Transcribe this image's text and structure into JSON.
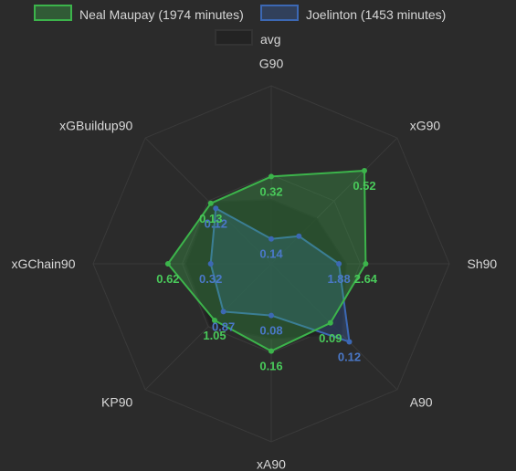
{
  "chart_data": {
    "type": "radar",
    "axes": [
      "G90",
      "xG90",
      "Sh90",
      "A90",
      "xA90",
      "KP90",
      "xGChain90",
      "xGBuildup90"
    ],
    "legend": [
      "Neal Maupay (1974 minutes)",
      "Joelinton (1453 minutes)",
      "avg"
    ],
    "series": [
      {
        "name": "Neal Maupay (1974 minutes)",
        "color": "#3cb44b",
        "values": [
          0.32,
          0.52,
          2.64,
          0.09,
          0.16,
          1.05,
          0.62,
          0.13
        ],
        "labels": [
          "0.32",
          "0.52",
          "2.64",
          "0.09",
          "0.16",
          "1.05",
          "0.62",
          "0.13"
        ],
        "radius_fraction": [
          0.49,
          0.74,
          0.53,
          0.47,
          0.49,
          0.45,
          0.58,
          0.48
        ]
      },
      {
        "name": "Joelinton (1453 minutes)",
        "color": "#3c68b4",
        "values": [
          0.14,
          0.27,
          1.88,
          0.12,
          0.08,
          0.87,
          0.32,
          0.12
        ],
        "labels": [
          "0.14",
          "",
          "1.88",
          "0.12",
          "0.08",
          "0.87",
          "0.32",
          "0.12"
        ],
        "radius_fraction": [
          0.14,
          0.22,
          0.38,
          0.62,
          0.29,
          0.38,
          0.34,
          0.44
        ]
      },
      {
        "name": "avg",
        "color": "#222222",
        "values": [],
        "radius_fraction": [
          0.36,
          0.36,
          0.42,
          0.56,
          0.42,
          0.49,
          0.48,
          0.49
        ]
      }
    ]
  }
}
